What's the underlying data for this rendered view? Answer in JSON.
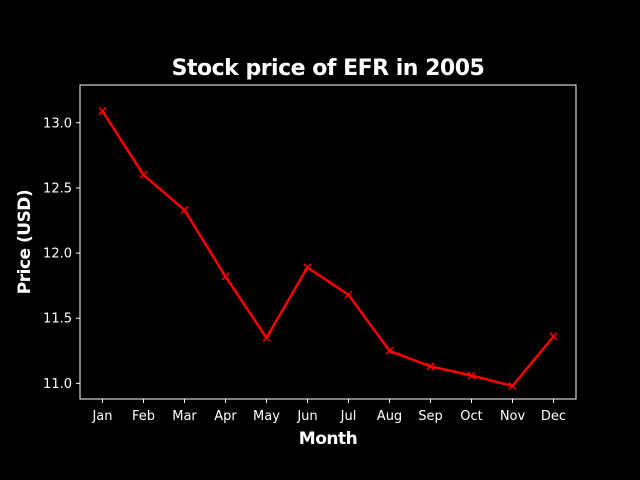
{
  "chart_data": {
    "type": "line",
    "title": "Stock price of EFR in 2005",
    "xlabel": "Month",
    "ylabel": "Price (USD)",
    "categories": [
      "Jan",
      "Feb",
      "Mar",
      "Apr",
      "May",
      "Jun",
      "Jul",
      "Aug",
      "Sep",
      "Oct",
      "Nov",
      "Dec"
    ],
    "values": [
      13.09,
      12.6,
      12.33,
      11.82,
      11.35,
      11.89,
      11.68,
      11.25,
      11.13,
      11.06,
      10.98,
      11.36
    ],
    "yticks": [
      11.0,
      11.5,
      12.0,
      12.5,
      13.0
    ],
    "ytick_labels": [
      "11.0",
      "11.5",
      "12.0",
      "12.5",
      "13.0"
    ],
    "ylim": [
      10.88,
      13.29
    ],
    "grid": false,
    "marker": "x",
    "line_color": "#ff0000",
    "background": "#000000",
    "axis_color": "#ffffff"
  }
}
